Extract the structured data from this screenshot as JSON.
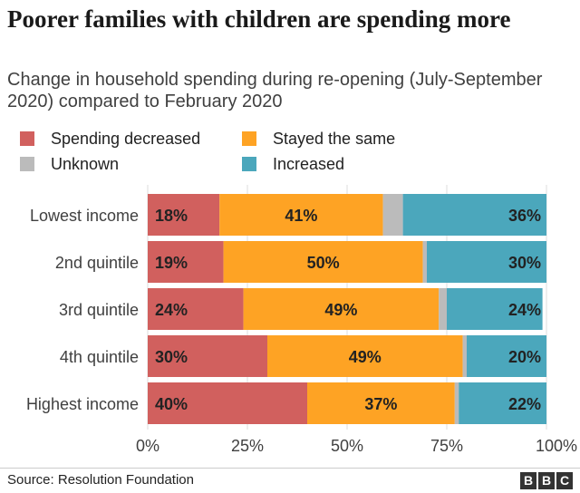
{
  "title": "Poorer families with children are spending more",
  "subtitle": "Change in household spending during re-opening (July-September 2020) compared to February 2020",
  "legend": [
    {
      "label": "Spending decreased",
      "color": "#d1605e"
    },
    {
      "label": "Stayed the same",
      "color": "#fea324"
    },
    {
      "label": "Unknown",
      "color": "#bbbbbb"
    },
    {
      "label": "Increased",
      "color": "#4ba7bc"
    }
  ],
  "chart_data": {
    "type": "bar",
    "orientation": "horizontal",
    "stacked": true,
    "categories": [
      "Lowest income",
      "2nd quintile",
      "3rd quintile",
      "4th quintile",
      "Highest income"
    ],
    "series": [
      {
        "name": "Spending decreased",
        "color": "#d1605e",
        "values": [
          18,
          19,
          24,
          30,
          40
        ],
        "labels": [
          "18%",
          "19%",
          "24%",
          "30%",
          "40%"
        ]
      },
      {
        "name": "Stayed the same",
        "color": "#fea324",
        "values": [
          41,
          50,
          49,
          49,
          37
        ],
        "labels": [
          "41%",
          "50%",
          "49%",
          "49%",
          "37%"
        ]
      },
      {
        "name": "Unknown",
        "color": "#bbbbbb",
        "values": [
          5,
          1,
          2,
          1,
          1
        ],
        "labels": [
          "",
          "",
          "",
          "",
          ""
        ]
      },
      {
        "name": "Increased",
        "color": "#4ba7bc",
        "values": [
          36,
          30,
          24,
          20,
          22
        ],
        "labels": [
          "36%",
          "30%",
          "24%",
          "20%",
          "22%"
        ]
      }
    ],
    "x_ticks": [
      "0%",
      "25%",
      "50%",
      "75%",
      "100%"
    ],
    "xlim": [
      0,
      100
    ],
    "grid": true,
    "legend_position": "top"
  },
  "footer": {
    "source": "Source: Resolution Foundation",
    "logo": [
      "B",
      "B",
      "C"
    ]
  }
}
